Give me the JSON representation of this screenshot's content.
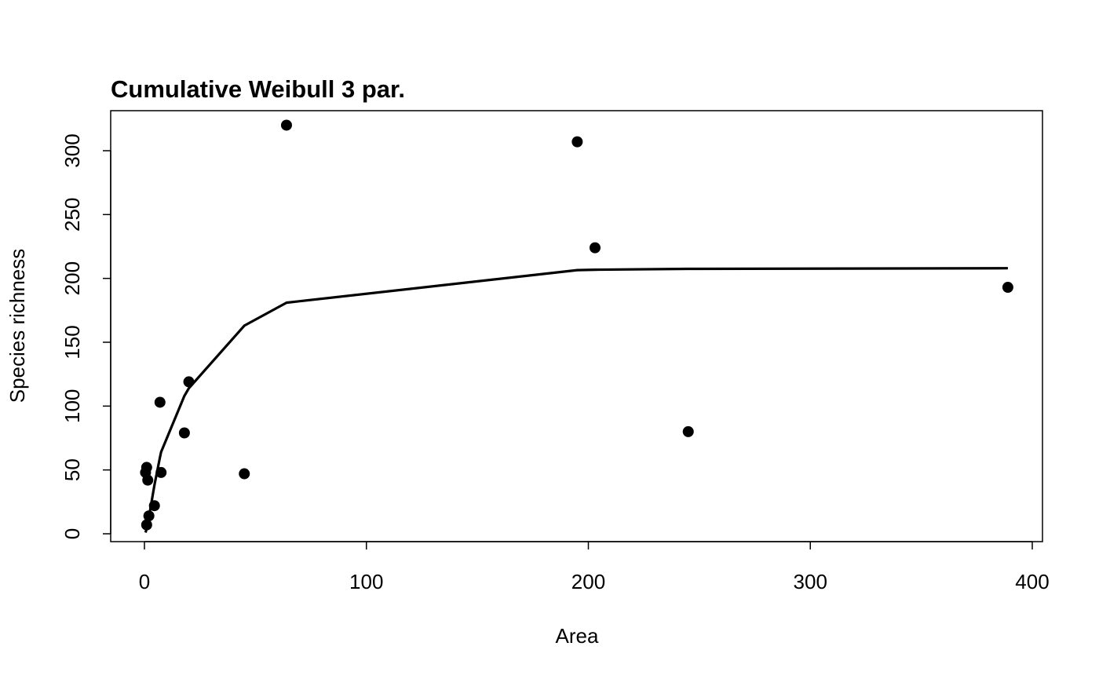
{
  "chart_data": {
    "type": "scatter",
    "title": "Cumulative Weibull 3 par.",
    "xlabel": "Area",
    "ylabel": "Species richness",
    "xlim": [
      0,
      400
    ],
    "ylim": [
      0,
      300
    ],
    "x_ticks": [
      0,
      100,
      200,
      300,
      400
    ],
    "y_ticks": [
      0,
      50,
      100,
      150,
      200,
      250,
      300
    ],
    "grid": false,
    "legend": "none",
    "colors": {
      "points": "#000000",
      "fit_line": "#000000",
      "frame": "#000000"
    },
    "series": [
      {
        "type": "scatter",
        "points": [
          {
            "x": 0.5,
            "y": 48
          },
          {
            "x": 1,
            "y": 52
          },
          {
            "x": 1,
            "y": 7
          },
          {
            "x": 1.5,
            "y": 42
          },
          {
            "x": 2,
            "y": 14
          },
          {
            "x": 4.5,
            "y": 22
          },
          {
            "x": 7,
            "y": 103
          },
          {
            "x": 7.5,
            "y": 48
          },
          {
            "x": 18,
            "y": 79
          },
          {
            "x": 20,
            "y": 119
          },
          {
            "x": 45,
            "y": 47
          },
          {
            "x": 64,
            "y": 320
          },
          {
            "x": 195,
            "y": 307
          },
          {
            "x": 203,
            "y": 224
          },
          {
            "x": 245,
            "y": 80
          },
          {
            "x": 389,
            "y": 193
          }
        ]
      },
      {
        "type": "line",
        "points": [
          {
            "x": 0.5,
            "y": 1
          },
          {
            "x": 1,
            "y": 4
          },
          {
            "x": 1.5,
            "y": 8
          },
          {
            "x": 2,
            "y": 13
          },
          {
            "x": 4.5,
            "y": 38
          },
          {
            "x": 7,
            "y": 60
          },
          {
            "x": 7.5,
            "y": 64
          },
          {
            "x": 18,
            "y": 108
          },
          {
            "x": 20,
            "y": 114
          },
          {
            "x": 45,
            "y": 163
          },
          {
            "x": 64,
            "y": 181
          },
          {
            "x": 195,
            "y": 206.5
          },
          {
            "x": 203,
            "y": 206.8
          },
          {
            "x": 245,
            "y": 207.5
          },
          {
            "x": 389,
            "y": 208
          }
        ]
      }
    ]
  }
}
